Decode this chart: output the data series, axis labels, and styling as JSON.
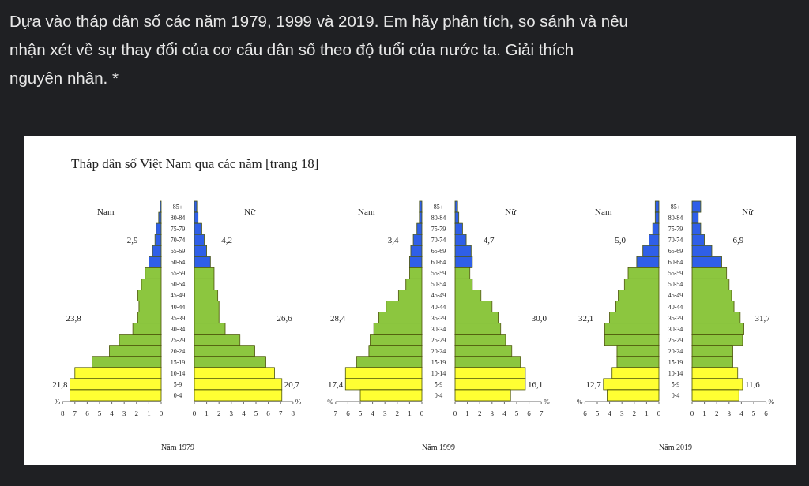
{
  "chart_data": [
    {
      "type": "other",
      "title": "Dựa vào tháp dân số các năm 1979, 1999 và 2019. Em hãy phân tích, so sánh và nêu nhận xét về sự thay đổi của cơ cấu dân số theo độ tuổi của nước ta. Giải thích nguyên nhân. *",
      "subtitle": "Tháp dân số Việt Nam qua các năm [trang 18]"
    },
    {
      "type": "bar",
      "orientation": "horizontal",
      "title": "Năm 1979",
      "xlabel": "%",
      "categories": [
        "85+",
        "80-84",
        "75-79",
        "70-74",
        "65-69",
        "60-64",
        "55-59",
        "50-54",
        "45-49",
        "40-44",
        "35-39",
        "30-34",
        "25-29",
        "20-24",
        "15-19",
        "10-14",
        "5-9",
        "0-4"
      ],
      "series": [
        {
          "name": "Nam",
          "colors": [
            "#2f5fe8",
            "#2f5fe8",
            "#2f5fe8",
            "#2f5fe8",
            "#2f5fe8",
            "#2f5fe8",
            "#8cc63f",
            "#8cc63f",
            "#8cc63f",
            "#8cc63f",
            "#8cc63f",
            "#8cc63f",
            "#8cc63f",
            "#8cc63f",
            "#8cc63f",
            "#ffff33",
            "#ffff33",
            "#ffff33"
          ],
          "values": [
            0.1,
            0.2,
            0.4,
            0.5,
            0.7,
            1.0,
            1.3,
            1.6,
            1.9,
            1.8,
            1.9,
            2.3,
            3.4,
            4.2,
            5.6,
            7.0,
            7.4,
            7.4
          ]
        }
      ],
      "xlim": [
        8,
        0
      ],
      "xticks": [
        8,
        7,
        6,
        5,
        4,
        3,
        2,
        1,
        0
      ],
      "annotations": [
        "2,9",
        "23,8",
        "21,8"
      ]
    },
    {
      "type": "bar",
      "orientation": "horizontal",
      "xlabel": "%",
      "categories": [
        null,
        null,
        null,
        null,
        null,
        null,
        null,
        null,
        null,
        null,
        null,
        null,
        null,
        null,
        null,
        null,
        null,
        null
      ],
      "series": [
        {
          "name": "Nữ",
          "colors": [
            "#2f5fe8",
            "#2f5fe8",
            "#2f5fe8",
            "#2f5fe8",
            "#2f5fe8",
            "#2f5fe8",
            "#8cc63f",
            "#8cc63f",
            "#8cc63f",
            "#8cc63f",
            "#8cc63f",
            "#8cc63f",
            "#8cc63f",
            "#8cc63f",
            "#8cc63f",
            "#ffff33",
            "#ffff33",
            "#ffff33"
          ],
          "values": [
            0.2,
            0.3,
            0.6,
            0.8,
            1.0,
            1.3,
            1.6,
            1.6,
            1.9,
            2.0,
            2.0,
            2.5,
            3.7,
            4.9,
            5.8,
            6.5,
            7.1,
            7.1
          ]
        }
      ],
      "xlim": [
        0,
        8
      ],
      "xticks": [
        0,
        1,
        2,
        3,
        4,
        5,
        6,
        7,
        8
      ],
      "annotations": [
        "4,2",
        "26,6",
        "20,7"
      ]
    },
    {
      "type": "bar",
      "orientation": "horizontal",
      "title": "Năm 1999",
      "xlabel": "%",
      "categories": [
        "85+",
        "80-84",
        "75-79",
        "70-74",
        "65-69",
        "60-64",
        "55-59",
        "50-54",
        "45-49",
        "40-44",
        "35-39",
        "30-34",
        "25-29",
        "20-24",
        "15-19",
        "10-14",
        "5-9",
        "0-4"
      ],
      "series": [
        {
          "name": "Nam",
          "colors": [
            "#2f5fe8",
            "#2f5fe8",
            "#2f5fe8",
            "#2f5fe8",
            "#2f5fe8",
            "#2f5fe8",
            "#8cc63f",
            "#8cc63f",
            "#8cc63f",
            "#8cc63f",
            "#8cc63f",
            "#8cc63f",
            "#8cc63f",
            "#8cc63f",
            "#8cc63f",
            "#ffff33",
            "#ffff33",
            "#ffff33"
          ],
          "values": [
            0.2,
            0.2,
            0.4,
            0.7,
            0.9,
            1.0,
            1.0,
            1.3,
            1.9,
            2.9,
            3.5,
            3.9,
            4.2,
            4.3,
            5.3,
            6.2,
            6.2,
            5.0
          ]
        }
      ],
      "xlim": [
        7,
        0
      ],
      "xticks": [
        7,
        6,
        5,
        4,
        3,
        2,
        1,
        0
      ],
      "annotations": [
        "3,4",
        "28,4",
        "17,4"
      ]
    },
    {
      "type": "bar",
      "orientation": "horizontal",
      "xlabel": "%",
      "categories": [
        null,
        null,
        null,
        null,
        null,
        null,
        null,
        null,
        null,
        null,
        null,
        null,
        null,
        null,
        null,
        null,
        null,
        null
      ],
      "series": [
        {
          "name": "Nữ",
          "colors": [
            "#2f5fe8",
            "#2f5fe8",
            "#2f5fe8",
            "#2f5fe8",
            "#2f5fe8",
            "#2f5fe8",
            "#8cc63f",
            "#8cc63f",
            "#8cc63f",
            "#8cc63f",
            "#8cc63f",
            "#8cc63f",
            "#8cc63f",
            "#8cc63f",
            "#8cc63f",
            "#ffff33",
            "#ffff33",
            "#ffff33"
          ],
          "values": [
            0.2,
            0.3,
            0.6,
            0.9,
            1.3,
            1.4,
            1.2,
            1.4,
            2.1,
            3.0,
            3.5,
            3.7,
            4.1,
            4.6,
            5.3,
            5.7,
            5.7,
            4.5
          ]
        }
      ],
      "xlim": [
        0,
        7
      ],
      "xticks": [
        0,
        1,
        2,
        3,
        4,
        5,
        6,
        7
      ],
      "annotations": [
        "4,7",
        "30,0",
        "16,1"
      ]
    },
    {
      "type": "bar",
      "orientation": "horizontal",
      "title": "Năm 2019",
      "xlabel": "%",
      "categories": [
        "85+",
        "80-84",
        "75-79",
        "70-74",
        "65-69",
        "60-64",
        "55-59",
        "50-54",
        "45-49",
        "40-44",
        "35-39",
        "30-34",
        "25-29",
        "20-24",
        "15-19",
        "10-14",
        "5-9",
        "0-4"
      ],
      "series": [
        {
          "name": "Nam",
          "colors": [
            "#2f5fe8",
            "#2f5fe8",
            "#2f5fe8",
            "#2f5fe8",
            "#2f5fe8",
            "#2f5fe8",
            "#8cc63f",
            "#8cc63f",
            "#8cc63f",
            "#8cc63f",
            "#8cc63f",
            "#8cc63f",
            "#8cc63f",
            "#8cc63f",
            "#8cc63f",
            "#ffff33",
            "#ffff33",
            "#ffff33"
          ],
          "values": [
            0.3,
            0.3,
            0.5,
            0.8,
            1.3,
            1.8,
            2.5,
            2.8,
            3.3,
            3.5,
            4.0,
            4.4,
            4.4,
            3.4,
            3.4,
            3.8,
            4.5,
            4.2
          ]
        }
      ],
      "xlim": [
        6,
        0
      ],
      "xticks": [
        6,
        5,
        4,
        3,
        2,
        1,
        0
      ],
      "annotations": [
        "5,0",
        "32,1",
        "12,7"
      ]
    },
    {
      "type": "bar",
      "orientation": "horizontal",
      "xlabel": "%",
      "categories": [
        null,
        null,
        null,
        null,
        null,
        null,
        null,
        null,
        null,
        null,
        null,
        null,
        null,
        null,
        null,
        null,
        null,
        null
      ],
      "series": [
        {
          "name": "Nữ",
          "colors": [
            "#2f5fe8",
            "#2f5fe8",
            "#2f5fe8",
            "#2f5fe8",
            "#2f5fe8",
            "#2f5fe8",
            "#8cc63f",
            "#8cc63f",
            "#8cc63f",
            "#8cc63f",
            "#8cc63f",
            "#8cc63f",
            "#8cc63f",
            "#8cc63f",
            "#8cc63f",
            "#ffff33",
            "#ffff33",
            "#ffff33"
          ],
          "values": [
            0.7,
            0.5,
            0.7,
            1.0,
            1.6,
            2.4,
            2.8,
            3.0,
            3.2,
            3.4,
            3.9,
            4.2,
            4.1,
            3.3,
            3.3,
            3.7,
            4.1,
            3.8
          ]
        }
      ],
      "xlim": [
        0,
        6
      ],
      "xticks": [
        0,
        1,
        2,
        3,
        4,
        5,
        6
      ],
      "annotations": [
        "6,9",
        "31,7",
        "11,6"
      ]
    }
  ]
}
